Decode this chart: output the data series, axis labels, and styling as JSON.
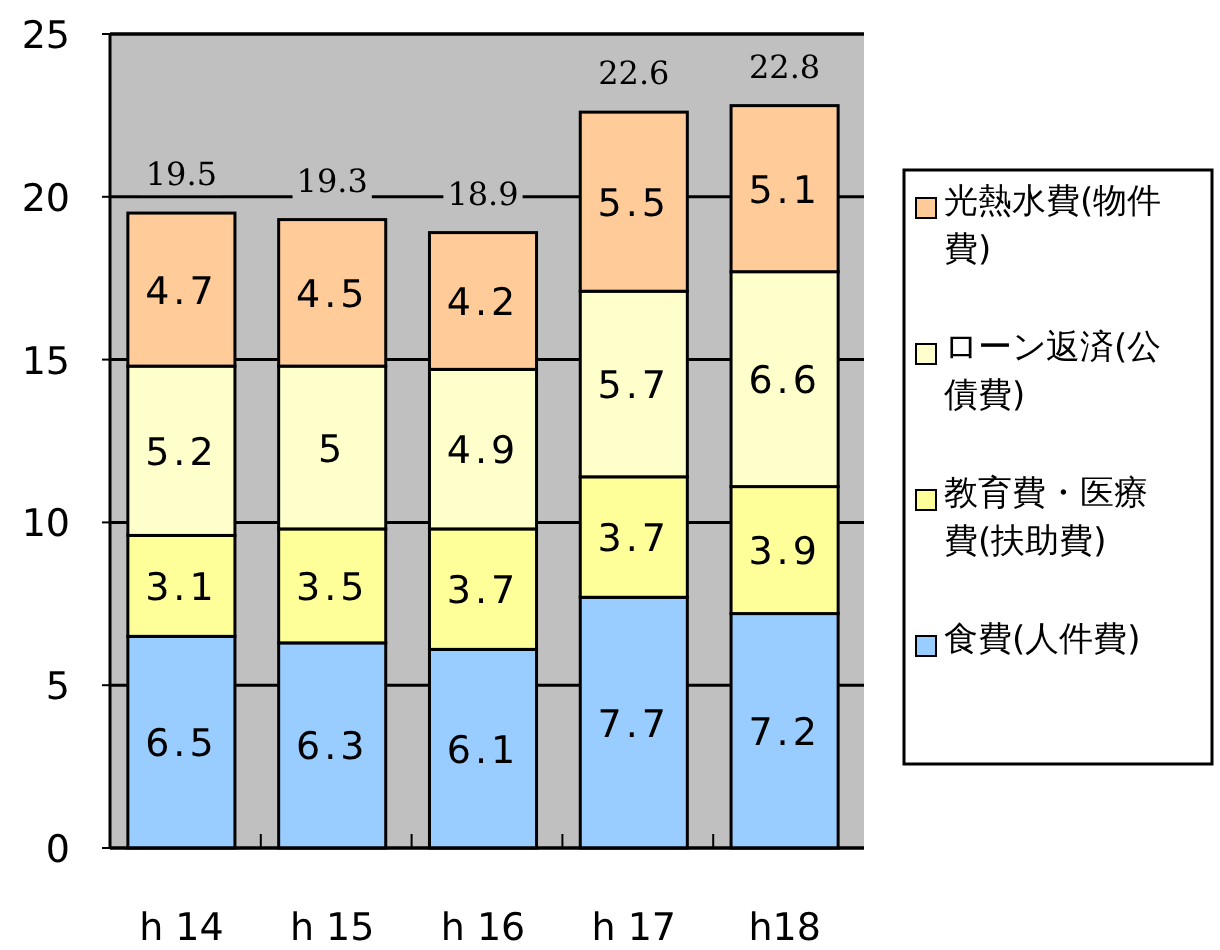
{
  "chart_data": {
    "type": "bar",
    "stacked": true,
    "categories": [
      "h 14",
      "h 15",
      "h 16",
      "h 17",
      "h18"
    ],
    "series": [
      {
        "name": "食費(人件費)",
        "color": "#99ccff",
        "values": [
          6.5,
          6.3,
          6.1,
          7.7,
          7.2
        ]
      },
      {
        "name": "教育費・医療費(扶助費)",
        "color": "#ffff99",
        "values": [
          3.1,
          3.5,
          3.7,
          3.7,
          3.9
        ]
      },
      {
        "name": "ローン返済(公債費)",
        "color": "#ffffcc",
        "values": [
          5.2,
          5,
          4.9,
          5.7,
          6.6
        ]
      },
      {
        "name": "光熱水費(物件費)",
        "color": "#ffcc99",
        "values": [
          4.7,
          4.5,
          4.2,
          5.5,
          5.1
        ]
      }
    ],
    "totals": [
      "19.5",
      "19.3",
      "18.9",
      "22.6",
      "22.8"
    ],
    "ylim": [
      0,
      25
    ],
    "yticks": [
      0,
      5,
      10,
      15,
      20,
      25
    ],
    "grid": "y",
    "legend": "right",
    "data_labels": true
  }
}
